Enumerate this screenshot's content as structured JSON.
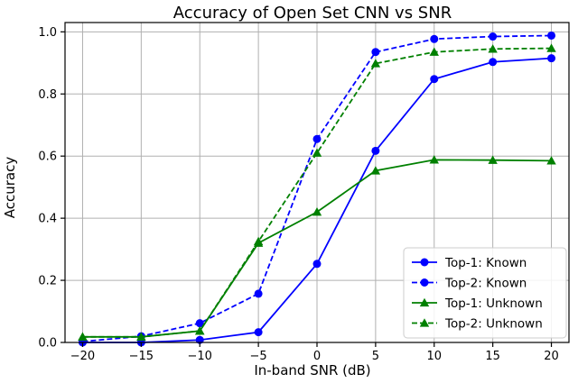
{
  "chart_data": {
    "type": "line",
    "title": "Accuracy of Open Set CNN vs SNR",
    "xlabel": "In-band SNR (dB)",
    "ylabel": "Accuracy",
    "x": [
      -20,
      -15,
      -10,
      -5,
      0,
      5,
      10,
      15,
      20
    ],
    "xlim": [
      -21.5,
      21.5
    ],
    "ylim": [
      0,
      1.03
    ],
    "xticks": [
      -20,
      -15,
      -10,
      -5,
      0,
      5,
      10,
      15,
      20
    ],
    "xtick_labels": [
      "−20",
      "−15",
      "−10",
      "−5",
      "0",
      "5",
      "10",
      "15",
      "20"
    ],
    "yticks": [
      0.0,
      0.2,
      0.4,
      0.6,
      0.8,
      1.0
    ],
    "ytick_labels": [
      "0.0",
      "0.2",
      "0.4",
      "0.6",
      "0.8",
      "1.0"
    ],
    "grid": true,
    "legend_position": "bottom-right",
    "series": [
      {
        "name": "Top-1: Known",
        "color": "#0000ff",
        "linestyle": "solid",
        "marker": "circle",
        "values": [
          0.0,
          0.0,
          0.008,
          0.033,
          0.253,
          0.617,
          0.848,
          0.903,
          0.915
        ]
      },
      {
        "name": "Top-2: Known",
        "color": "#0000ff",
        "linestyle": "dashed",
        "marker": "circle",
        "values": [
          0.003,
          0.02,
          0.062,
          0.157,
          0.655,
          0.935,
          0.977,
          0.985,
          0.988
        ]
      },
      {
        "name": "Top-1: Unknown",
        "color": "#008000",
        "linestyle": "solid",
        "marker": "triangle",
        "values": [
          0.018,
          0.018,
          0.037,
          0.32,
          0.42,
          0.553,
          0.588,
          0.587,
          0.585
        ]
      },
      {
        "name": "Top-2: Unknown",
        "color": "#008000",
        "linestyle": "dashed",
        "marker": "triangle",
        "values": [
          0.018,
          0.018,
          0.037,
          0.325,
          0.61,
          0.898,
          0.935,
          0.945,
          0.947
        ]
      }
    ]
  }
}
